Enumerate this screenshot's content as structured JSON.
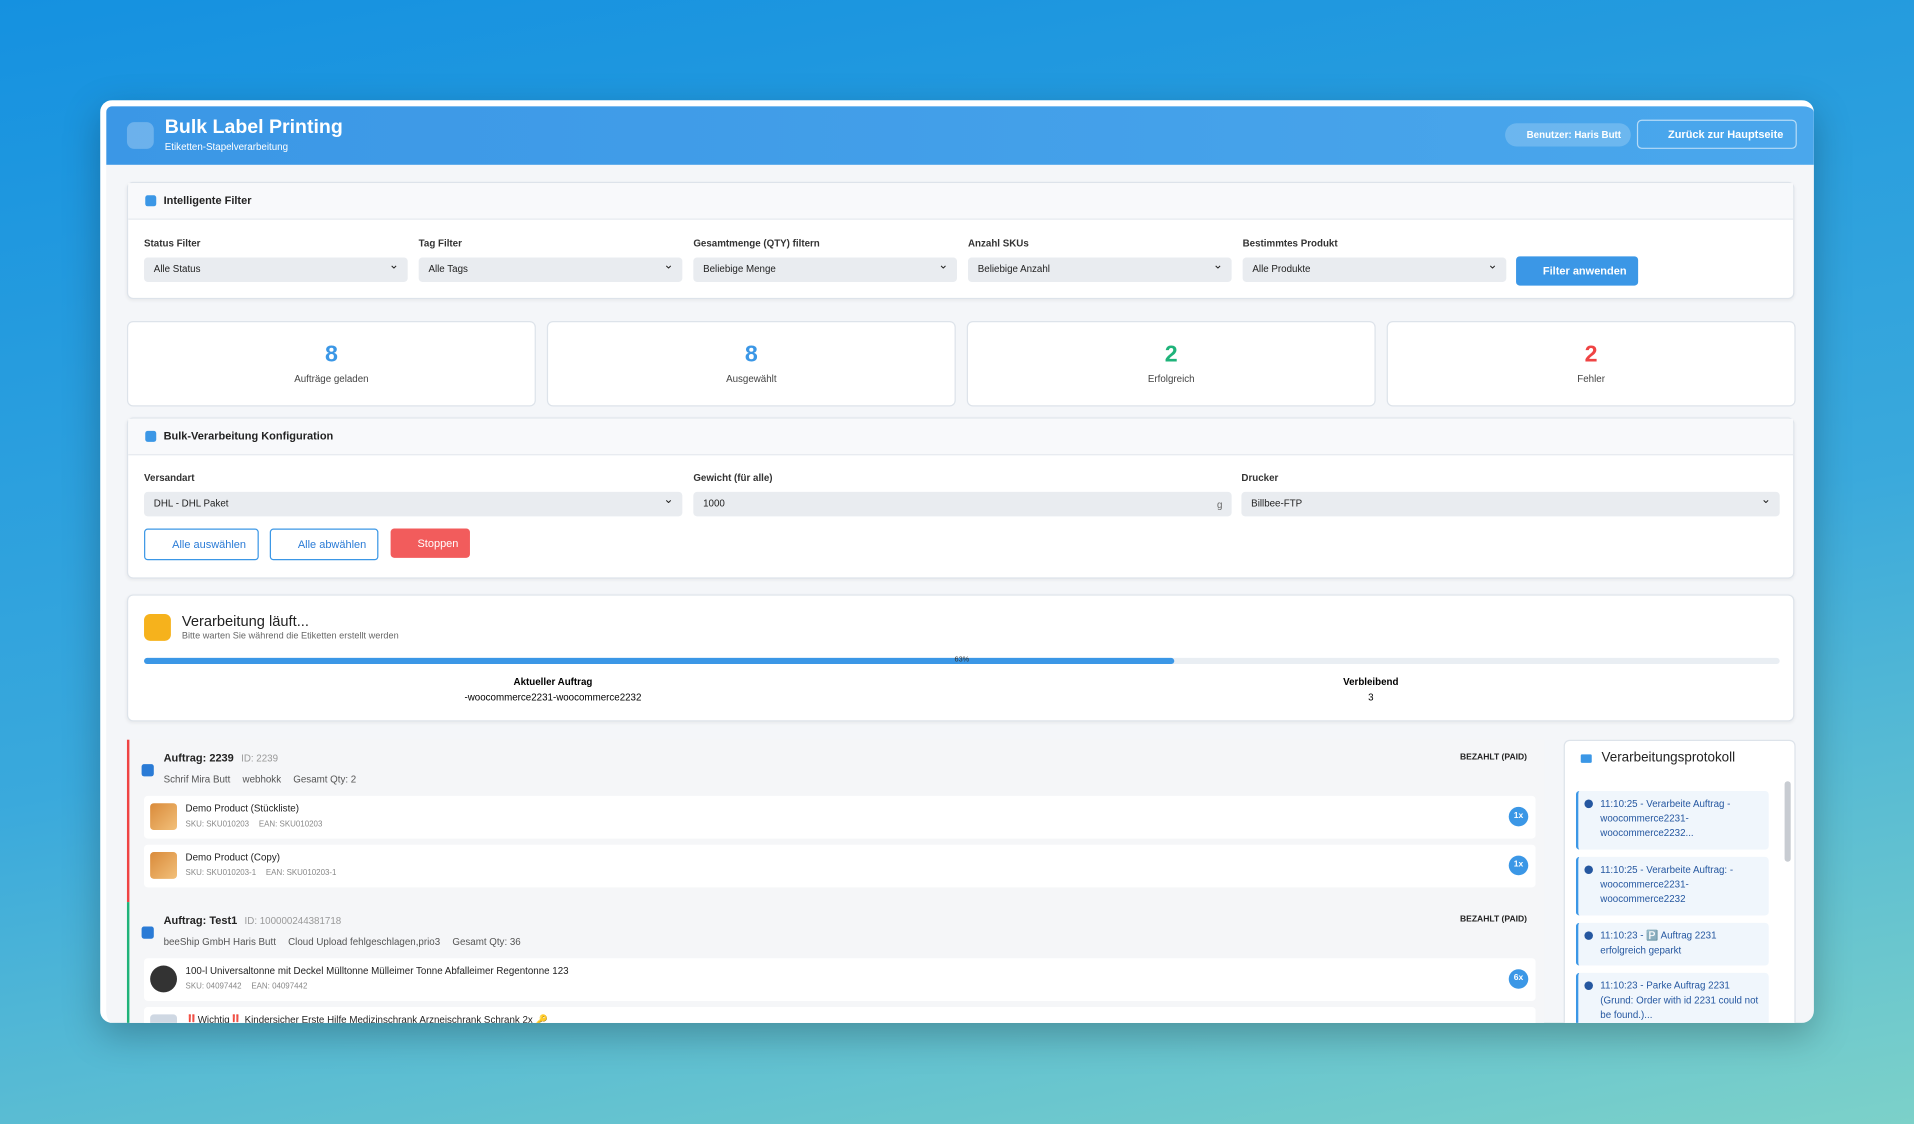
{
  "header": {
    "title": "Bulk Label Printing",
    "subtitle": "Etiketten-Stapelverarbeitung",
    "user": "Benutzer: Haris Butt",
    "back": "Zurück zur Hauptseite"
  },
  "filters": {
    "title": "Intelligente Filter",
    "fields": [
      {
        "label": "Status Filter",
        "value": "Alle Status"
      },
      {
        "label": "Tag Filter",
        "value": "Alle Tags"
      },
      {
        "label": "Gesamtmenge (QTY) filtern",
        "value": "Beliebige Menge"
      },
      {
        "label": "Anzahl SKUs",
        "value": "Beliebige Anzahl"
      },
      {
        "label": "Bestimmtes Produkt",
        "value": "Alle Produkte"
      }
    ],
    "button": "Filter anwenden"
  },
  "stats": [
    {
      "value": 8,
      "label": "Aufträge geladen"
    },
    {
      "value": 8,
      "label": "Ausgewählt"
    },
    {
      "value": 2,
      "label": "Erfolgreich"
    },
    {
      "value": 2,
      "label": "Fehler"
    }
  ],
  "config": {
    "title": "Bulk-Verarbeitung Konfiguration",
    "shipping": {
      "label": "Versandart",
      "value": "DHL - DHL Paket"
    },
    "weight": {
      "label": "Gewicht (für alle)",
      "value": "1000",
      "unit": "g"
    },
    "printer": {
      "label": "Drucker",
      "value": "Billbee-FTP"
    },
    "buttons": [
      "Alle auswählen",
      "Alle abwählen",
      "Stoppen"
    ]
  },
  "progress": {
    "title": "Verarbeitung läuft...",
    "subtitle": "Bitte warten Sie während die Etiketten erstellt werden",
    "percent": {
      "value": 63,
      "label": "63%"
    },
    "current": {
      "label": "Aktueller Auftrag",
      "value": "-woocommerce2231-woocommerce2232"
    },
    "remaining": {
      "label": "Verbleibend",
      "value": "3"
    }
  },
  "orders": [
    {
      "title": "Auftrag: 2239",
      "id": "ID: 2239",
      "status": "BEZAHLT (PAID)",
      "customer": "Schrif Mira Butt",
      "tags": "webhokk",
      "qty": "Gesamt Qty: 2",
      "items": [
        {
          "name": "Demo Product (Stückliste)",
          "sku": "SKU: SKU010203",
          "ean": "EAN: SKU010203",
          "qty": "1x"
        },
        {
          "name": "Demo Product (Copy)",
          "sku": "SKU: SKU010203-1",
          "ean": "EAN: SKU010203-1",
          "qty": "1x"
        }
      ]
    },
    {
      "title": "Auftrag: Test1",
      "id": "ID: 100000244381718",
      "status": "BEZAHLT (PAID)",
      "customer": "beeShip GmbH Haris Butt",
      "tags": "Cloud Upload fehlgeschlagen,prio3",
      "qty": "Gesamt Qty: 36",
      "items": [
        {
          "name": "100-l Universaltonne mit Deckel Mülltonne Mülleimer Tonne Abfalleimer Regentonne 123",
          "sku": "SKU: 04097442",
          "ean": "EAN: 04097442",
          "qty": "6x"
        },
        {
          "name": "‼️Wichtig‼️ Kindersicher Erste Hilfe Medizinschrank Arzneischrank Schrank 2x 🔑"
        }
      ]
    }
  ],
  "log": {
    "title": "Verarbeitungsprotokoll",
    "entries": [
      "11:10:25 - Verarbeite Auftrag - woocommerce2231-woocommerce2232...",
      "11:10:25 - Verarbeite Auftrag: - woocommerce2231-woocommerce2232",
      "11:10:23 - 🅿️ Auftrag 2231 erfolgreich geparkt",
      "11:10:23 - Parke Auftrag 2231 (Grund: Order with id 2231 could not be found.)..."
    ]
  }
}
